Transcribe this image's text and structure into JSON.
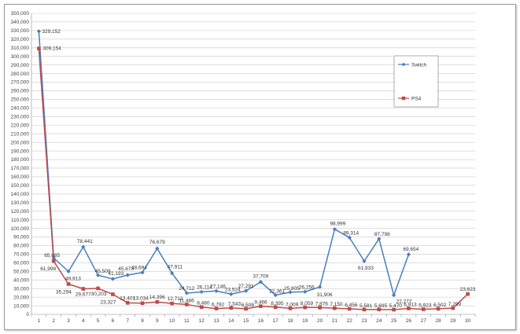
{
  "chart_data": {
    "type": "line",
    "title": "",
    "xlabel": "",
    "ylabel": "",
    "x": [
      1,
      2,
      3,
      4,
      5,
      6,
      7,
      8,
      9,
      10,
      11,
      12,
      13,
      14,
      15,
      16,
      17,
      18,
      19,
      20,
      21,
      22,
      23,
      24,
      25,
      26,
      27,
      28,
      29,
      30
    ],
    "ylim": [
      0,
      350000
    ],
    "ytick_step": 10000,
    "grid": true,
    "legend_position": "right",
    "series": [
      {
        "name": "Switch",
        "color": "#4a7ebb",
        "marker": "diamond",
        "values": [
          329152,
          65685,
          49913,
          78441,
          45509,
          41193,
          45673,
          48694,
          76679,
          47911,
          24712,
          26114,
          27146,
          23524,
          27291,
          37709,
          22361,
          25805,
          26256,
          31906,
          98999,
          89314,
          61933,
          87798,
          22277,
          69654,
          null,
          null,
          null,
          null
        ],
        "labels": [
          "329,152",
          "65,685",
          "49,913",
          "78,441",
          "45,509",
          "41,193",
          "45,673",
          "48,694",
          "76,679",
          "47,911",
          "24,712",
          "26,114",
          "27,146",
          "23,524",
          "27,291",
          "37,709",
          "22,361",
          "25,805",
          "26,256",
          "31,906",
          "98,999",
          "89,314",
          "61,933",
          "87,798",
          "22,277",
          "69,654",
          null,
          null,
          null,
          null
        ]
      },
      {
        "name": "PS4",
        "color": "#be4b48",
        "marker": "square",
        "values": [
          309154,
          61998,
          35294,
          29677,
          30203,
          23327,
          13401,
          13034,
          14396,
          12712,
          11486,
          8480,
          6792,
          7543,
          6508,
          9466,
          8395,
          7009,
          8059,
          7876,
          7150,
          6456,
          5581,
          5695,
          5470,
          6913,
          5923,
          6502,
          7299,
          23623
        ],
        "labels": [
          "309,154",
          "61,998",
          "35,294",
          "29,677",
          "30,203",
          "23,327",
          "13,401",
          "13,034",
          "14,396",
          "12,712",
          "11,486",
          "8,480",
          "6,792",
          "7,543",
          "6,508",
          "9,466",
          "8,395",
          "7,009",
          "8,059",
          "7,876",
          "7,150",
          "6,456",
          "5,581",
          "5,695",
          "5,470",
          "6,913",
          "5,923",
          "6,502",
          "7,299",
          "23,623"
        ]
      }
    ]
  }
}
